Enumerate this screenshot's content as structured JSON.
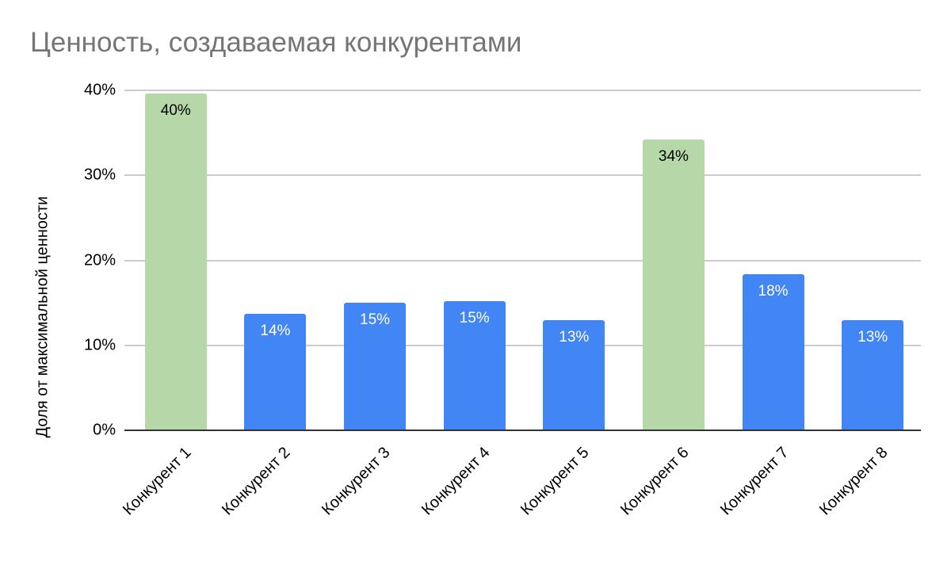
{
  "chart_data": {
    "type": "bar",
    "title": "Ценность, создаваемая конкурентами",
    "xlabel": "",
    "ylabel": "Доля от максимальной ценности",
    "ylim": [
      0,
      40
    ],
    "yticks": [
      "0%",
      "10%",
      "20%",
      "30%",
      "40%"
    ],
    "grid": true,
    "legend": "none",
    "categories": [
      "Конкурент 1",
      "Конкурент 2",
      "Конкурент 3",
      "Конкурент 4",
      "Конкурент 5",
      "Конкурент 6",
      "Конкурент 7",
      "Конкурент 8"
    ],
    "values": [
      39.6,
      13.7,
      15.0,
      15.2,
      13.0,
      34.2,
      18.4,
      13.0
    ],
    "data_labels": [
      "40%",
      "14%",
      "15%",
      "15%",
      "13%",
      "34%",
      "18%",
      "13%"
    ],
    "bar_colors": [
      "#b6d7a8",
      "#4285f4",
      "#4285f4",
      "#4285f4",
      "#4285f4",
      "#b6d7a8",
      "#4285f4",
      "#4285f4"
    ],
    "label_colors": [
      "#000000",
      "#ffffff",
      "#ffffff",
      "#ffffff",
      "#ffffff",
      "#000000",
      "#ffffff",
      "#ffffff"
    ]
  }
}
